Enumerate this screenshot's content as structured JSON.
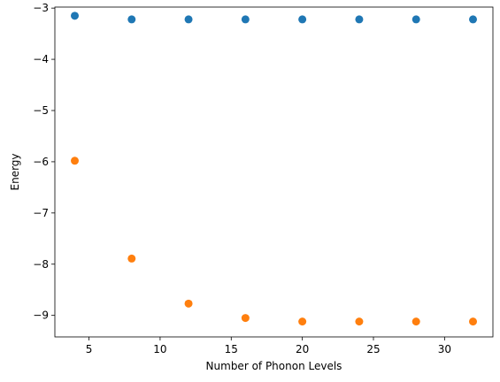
{
  "chart_data": {
    "type": "scatter",
    "title": "",
    "xlabel": "Number of Phonon Levels",
    "ylabel": "Energy",
    "xlim": [
      2.6,
      33.4
    ],
    "ylim": [
      -9.42,
      -2.98
    ],
    "x_ticks": [
      5,
      10,
      15,
      20,
      25,
      30
    ],
    "y_ticks": [
      -9,
      -8,
      -7,
      -6,
      -5,
      -4,
      -3
    ],
    "grid": false,
    "legend": "none",
    "x": [
      4,
      8,
      12,
      16,
      20,
      24,
      28,
      32
    ],
    "series": [
      {
        "color": "#1f77b4",
        "values": [
          -3.15,
          -3.22,
          -3.22,
          -3.22,
          -3.22,
          -3.22,
          -3.22,
          -3.22
        ]
      },
      {
        "color": "#ff7f0e",
        "values": [
          -5.98,
          -7.89,
          -8.77,
          -9.05,
          -9.12,
          -9.12,
          -9.12,
          -9.12
        ]
      }
    ]
  }
}
